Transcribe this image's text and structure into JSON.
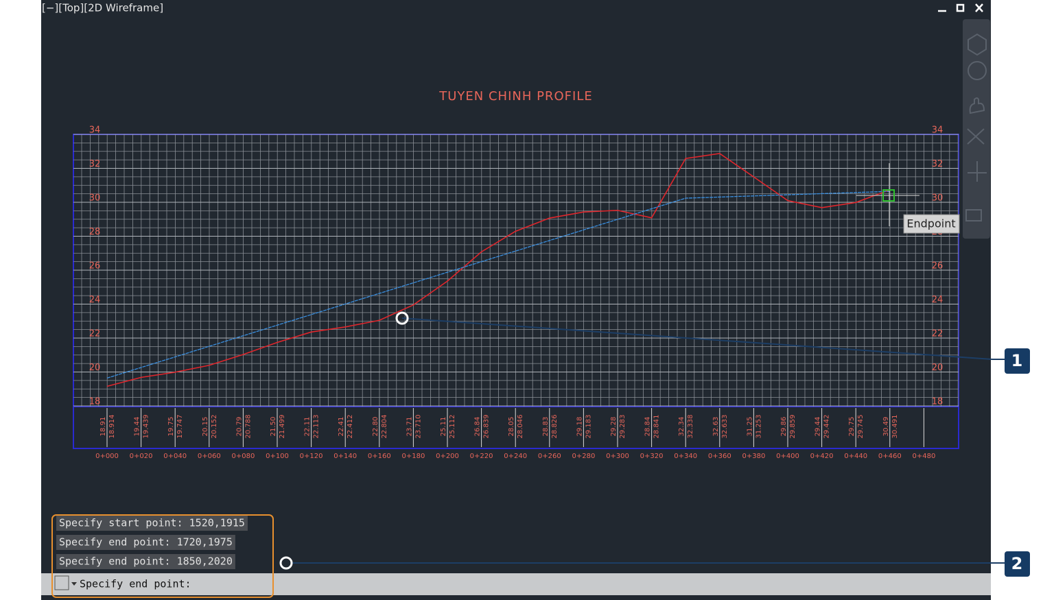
{
  "viewport": {
    "label": "[−][Top][2D Wireframe]"
  },
  "profile": {
    "title": "TUYEN CHINH PROFILE",
    "ylim": [
      18,
      34
    ],
    "yticks": [
      18,
      20,
      22,
      24,
      26,
      28,
      30,
      32,
      34
    ],
    "stations": [
      "0+000",
      "0+020",
      "0+040",
      "0+060",
      "0+080",
      "0+100",
      "0+120",
      "0+140",
      "0+160",
      "0+180",
      "0+200",
      "0+220",
      "0+240",
      "0+260",
      "0+280",
      "0+300",
      "0+320",
      "0+340",
      "0+360",
      "0+380",
      "0+400",
      "0+420",
      "0+440",
      "0+460",
      "0+480"
    ],
    "elevation_labels": [
      "18.91",
      "19.44",
      "19.75",
      "20.15",
      "20.79",
      "21.50",
      "22.11",
      "22.41",
      "22.80",
      "23.71",
      "25.11",
      "26.84",
      "28.05",
      "28.83",
      "29.18",
      "29.28",
      "28.84",
      "32.34",
      "32.63",
      "31.25",
      "29.86",
      "29.44",
      "29.75",
      "30.49"
    ],
    "elevations": [
      {
        "value": 18.914,
        "label": "18.914"
      },
      {
        "value": 19.439,
        "label": "19.439"
      },
      {
        "value": 19.747,
        "label": "19.747"
      },
      {
        "value": 20.152,
        "label": "20.152"
      },
      {
        "value": 20.788,
        "label": "20.788"
      },
      {
        "value": 21.499,
        "label": "21.499"
      },
      {
        "value": 22.113,
        "label": "22.113"
      },
      {
        "value": 22.412,
        "label": "22.412"
      },
      {
        "value": 22.804,
        "label": "22.804"
      },
      {
        "value": 23.71,
        "label": "23.710"
      },
      {
        "value": 25.112,
        "label": "25.112"
      },
      {
        "value": 26.839,
        "label": "26.839"
      },
      {
        "value": 28.046,
        "label": "28.046"
      },
      {
        "value": 28.826,
        "label": "28.826"
      },
      {
        "value": 29.183,
        "label": "29.183"
      },
      {
        "value": 29.283,
        "label": "29.283"
      },
      {
        "value": 28.841,
        "label": "28.841"
      },
      {
        "value": 32.338,
        "label": "32.338"
      },
      {
        "value": 32.633,
        "label": "32.633"
      },
      {
        "value": 31.253,
        "label": "31.253"
      },
      {
        "value": 29.859,
        "label": "29.859"
      },
      {
        "value": 29.442,
        "label": "29.442"
      },
      {
        "value": 29.745,
        "label": "29.745"
      },
      {
        "value": 30.491,
        "label": "30.491"
      }
    ],
    "design": {
      "x": [
        0,
        340,
        460
      ],
      "values": [
        19.4,
        30.0,
        30.4
      ]
    }
  },
  "tooltip": "Endpoint",
  "command_history": [
    "Specify start point: 1520,1915",
    "Specify end point: 1720,1975",
    "Specify end point: 1850,2020"
  ],
  "command_prompt": "Specify end point:",
  "callouts": [
    "1",
    "2"
  ]
}
